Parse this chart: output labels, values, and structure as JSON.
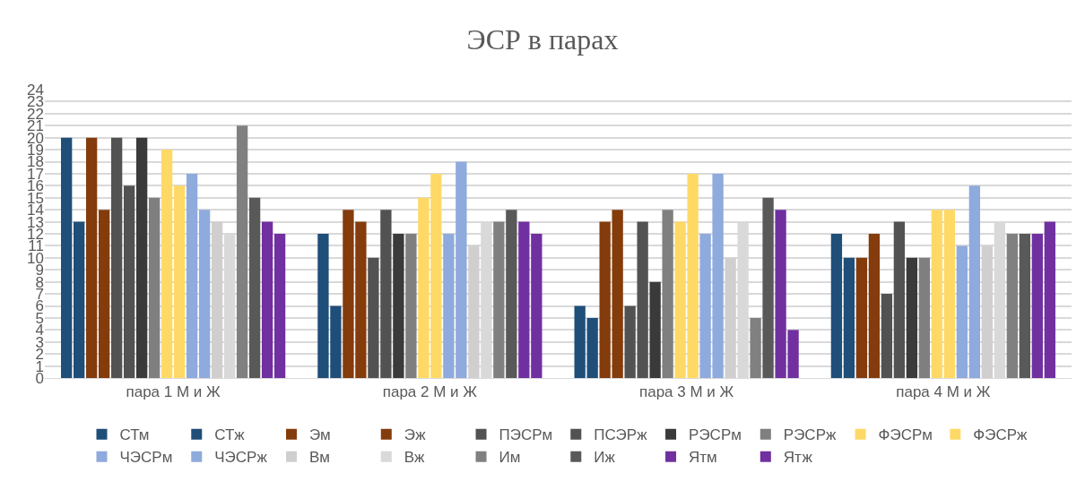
{
  "chart_data": {
    "type": "bar",
    "title": "ЭСР в парах",
    "categories": [
      "пара 1 М и Ж",
      "пара 2 М и Ж",
      "пара 3 М и Ж",
      "пара 4 М и Ж"
    ],
    "series": [
      {
        "name": "СТм",
        "color": "#1f4e79",
        "values": [
          20,
          12,
          6,
          12
        ]
      },
      {
        "name": "СТж",
        "color": "#1f4e79",
        "values": [
          13,
          6,
          5,
          10
        ]
      },
      {
        "name": "Эм",
        "color": "#843c0c",
        "values": [
          20,
          14,
          13,
          10
        ]
      },
      {
        "name": "Эж",
        "color": "#843c0c",
        "values": [
          14,
          13,
          14,
          12
        ]
      },
      {
        "name": "ПЭСРм",
        "color": "#525252",
        "values": [
          20,
          10,
          6,
          7
        ]
      },
      {
        "name": "ПСЭРж",
        "color": "#525252",
        "values": [
          16,
          14,
          13,
          13
        ]
      },
      {
        "name": "РЭСРм",
        "color": "#3a3a3a",
        "values": [
          20,
          12,
          8,
          10
        ]
      },
      {
        "name": "РЭСРж",
        "color": "#7f7f7f",
        "values": [
          15,
          12,
          14,
          10
        ]
      },
      {
        "name": "ФЭСРм",
        "color": "#ffd966",
        "values": [
          19,
          15,
          13,
          14
        ]
      },
      {
        "name": "ФЭСРж",
        "color": "#ffd966",
        "values": [
          16,
          17,
          17,
          14
        ]
      },
      {
        "name": "ЧЭСРм",
        "color": "#8faadc",
        "values": [
          17,
          12,
          12,
          11
        ]
      },
      {
        "name": "ЧЭСРж",
        "color": "#8faadc",
        "values": [
          14,
          18,
          17,
          16
        ]
      },
      {
        "name": "Вм",
        "color": "#d0cece",
        "values": [
          13,
          11,
          10,
          11
        ]
      },
      {
        "name": "Вж",
        "color": "#d9d9d9",
        "values": [
          12,
          13,
          13,
          13
        ]
      },
      {
        "name": "Им",
        "color": "#808080",
        "values": [
          21,
          13,
          5,
          12
        ]
      },
      {
        "name": "Иж",
        "color": "#595959",
        "values": [
          15,
          14,
          15,
          12
        ]
      },
      {
        "name": "Ятм",
        "color": "#7030a0",
        "values": [
          13,
          13,
          14,
          12
        ]
      },
      {
        "name": "Ятж",
        "color": "#7030a0",
        "values": [
          12,
          12,
          4,
          13
        ]
      }
    ],
    "ylim": [
      0,
      24
    ],
    "yticks": [
      0,
      1,
      2,
      3,
      4,
      5,
      6,
      7,
      8,
      9,
      10,
      11,
      12,
      13,
      14,
      15,
      16,
      17,
      18,
      19,
      20,
      21,
      22,
      23,
      24
    ],
    "grid": "y",
    "legend": "bottom"
  }
}
